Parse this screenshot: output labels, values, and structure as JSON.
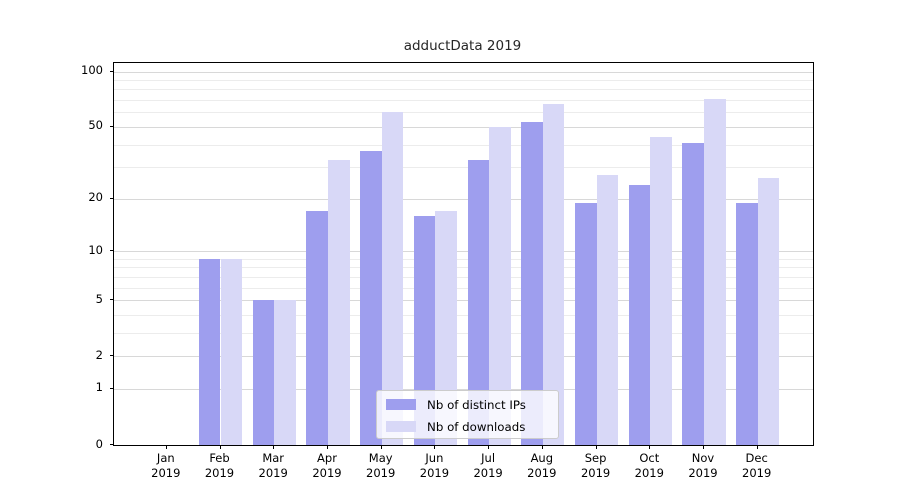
{
  "chart_data": {
    "type": "bar",
    "title": "adductData 2019",
    "x_labels": [
      [
        "Jan",
        "2019"
      ],
      [
        "Feb",
        "2019"
      ],
      [
        "Mar",
        "2019"
      ],
      [
        "Apr",
        "2019"
      ],
      [
        "May",
        "2019"
      ],
      [
        "Jun",
        "2019"
      ],
      [
        "Jul",
        "2019"
      ],
      [
        "Aug",
        "2019"
      ],
      [
        "Sep",
        "2019"
      ],
      [
        "Oct",
        "2019"
      ],
      [
        "Nov",
        "2019"
      ],
      [
        "Dec",
        "2019"
      ]
    ],
    "series": [
      {
        "name": "Nb of distinct IPs",
        "color": "#9e9eee",
        "values": [
          0,
          9,
          5,
          17,
          37,
          16,
          33,
          53,
          19,
          24,
          41,
          19
        ]
      },
      {
        "name": "Nb of downloads",
        "color": "#d8d8f7",
        "values": [
          0,
          9,
          5,
          33,
          60,
          17,
          50,
          67,
          27,
          44,
          71,
          26
        ]
      }
    ],
    "y_ticks": [
      0,
      1,
      2,
      5,
      10,
      20,
      50,
      100
    ],
    "y_minor_gridlines": [
      3,
      4,
      6,
      7,
      8,
      9,
      30,
      40,
      60,
      70,
      80,
      90
    ],
    "y_scale": "log10(1+y)",
    "ylim": [
      0,
      112
    ],
    "grid": "horizontal",
    "legend_position": "bottom-center-inside"
  },
  "colors": {
    "background": "#ffffff",
    "axis_frame": "#000000",
    "grid_major": "#d8d8d8",
    "grid_minor": "#ececec",
    "text": "#000000",
    "legend_border": "#cccccc"
  }
}
